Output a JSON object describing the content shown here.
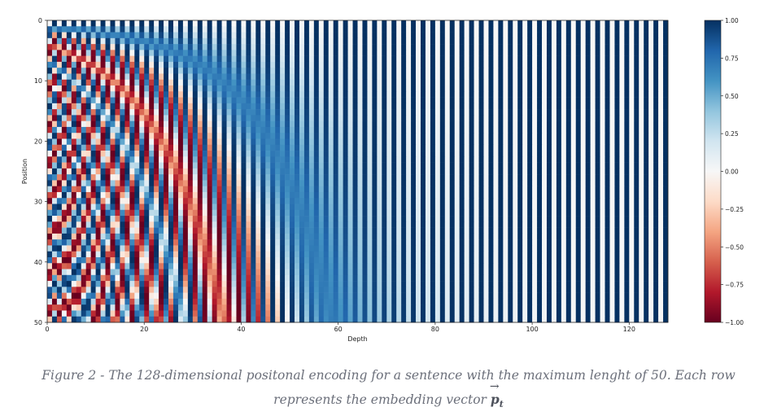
{
  "chart_data": {
    "type": "heatmap",
    "description_kind": "sinusoidal positional encoding",
    "d_model": 128,
    "rows": 51,
    "xlabel": "Depth",
    "ylabel": "Position",
    "xlim": [
      0,
      128
    ],
    "ylim": [
      0,
      50
    ],
    "y_inverted": true,
    "xticks": [
      0,
      20,
      40,
      60,
      80,
      100,
      120
    ],
    "yticks": [
      0,
      10,
      20,
      30,
      40,
      50
    ],
    "colormap": "RdBu",
    "colors": {
      "low": "#67001f",
      "mid": "#f7f7f7",
      "high": "#053061"
    },
    "colorbar": {
      "range": [
        -1.0,
        1.0
      ],
      "ticks": [
        "1.00",
        "0.75",
        "0.50",
        "0.25",
        "0.00",
        "−0.25",
        "−0.50",
        "−0.75",
        "−1.00"
      ],
      "tick_values": [
        1.0,
        0.75,
        0.5,
        0.25,
        0.0,
        -0.25,
        -0.5,
        -0.75,
        -1.0
      ]
    }
  },
  "caption": {
    "text": "Figure 2 - The 128-dimensional positonal encoding for a sentence with the maximum lenght of 50. Each row represents the embedding vector",
    "vector_symbol": "p",
    "vector_subscript": "t"
  }
}
